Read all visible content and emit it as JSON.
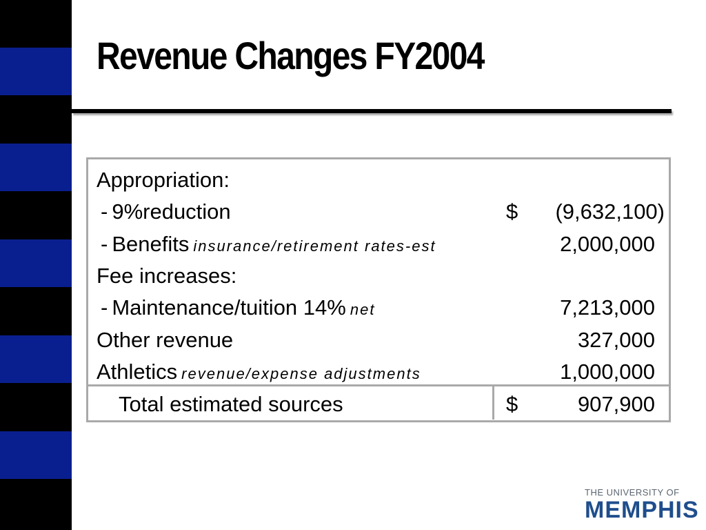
{
  "slide": {
    "title": "Revenue Changes FY2004"
  },
  "table": {
    "rows": [
      {
        "label": "Appropriation:",
        "note": "",
        "dollar": "",
        "amount": ""
      },
      {
        "dash": "-",
        "label": "9%reduction",
        "note": "",
        "dollar": "$",
        "amount": "(9,632,100)"
      },
      {
        "dash": "-",
        "label": "Benefits",
        "note": "insurance/retirement rates-est",
        "dollar": "",
        "amount": "2,000,000"
      },
      {
        "label": "Fee increases:",
        "note": "",
        "dollar": "",
        "amount": ""
      },
      {
        "dash": "-",
        "label": "Maintenance/tuition 14%",
        "note": "net",
        "dollar": "",
        "amount": "7,213,000"
      },
      {
        "label": "Other revenue",
        "note": "",
        "dollar": "",
        "amount": "327,000"
      },
      {
        "label": "Athletics",
        "note": "revenue/expense adjustments",
        "dollar": "",
        "amount": "1,000,000"
      }
    ],
    "total": {
      "label": "Total estimated sources",
      "dollar": "$",
      "amount": "907,900"
    }
  },
  "logo": {
    "line1": "THE UNIVERSITY OF",
    "line2": "MEMPHIS"
  },
  "colors": {
    "stripe_black": "#000000",
    "stripe_blue": "#0a1f8f",
    "table_border": "#a9a9a9",
    "logo_blue": "#1f4e8c"
  }
}
